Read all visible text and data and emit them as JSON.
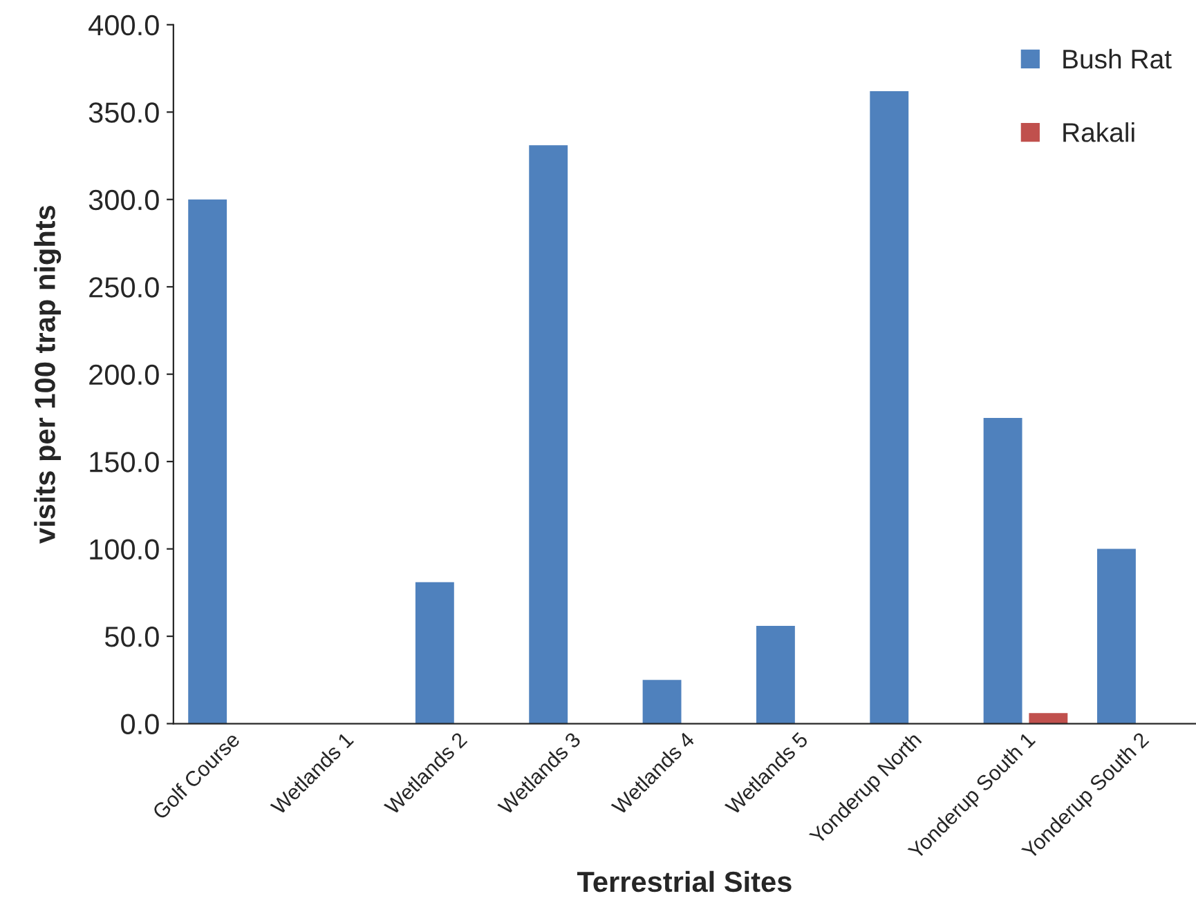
{
  "chart_data": {
    "type": "bar",
    "xlabel": "Terrestrial Sites",
    "ylabel": "visits per 100 trap nights",
    "categories": [
      "Golf Course",
      "Wetlands 1",
      "Wetlands 2",
      "Wetlands 3",
      "Wetlands 4",
      "Wetlands 5",
      "Yonderup North",
      "Yonderup South 1",
      "Yonderup South 2"
    ],
    "series": [
      {
        "name": "Bush Rat",
        "color": "#4f81bd",
        "values": [
          300,
          0,
          81,
          331,
          25,
          56,
          362,
          175,
          100
        ]
      },
      {
        "name": "Rakali",
        "color": "#c0504d",
        "values": [
          0,
          0,
          0,
          0,
          0,
          0,
          0,
          6,
          0
        ]
      }
    ],
    "ylim": [
      0,
      400
    ],
    "yticks": [
      {
        "value": 0,
        "label": "0.0"
      },
      {
        "value": 50,
        "label": "50.0"
      },
      {
        "value": 100,
        "label": "100.0"
      },
      {
        "value": 150,
        "label": "150.0"
      },
      {
        "value": 200,
        "label": "200.0"
      },
      {
        "value": 250,
        "label": "250.0"
      },
      {
        "value": 300,
        "label": "300.0"
      },
      {
        "value": 350,
        "label": "350.0"
      },
      {
        "value": 400,
        "label": "400.0"
      }
    ],
    "grid": false,
    "legend": "top right"
  }
}
